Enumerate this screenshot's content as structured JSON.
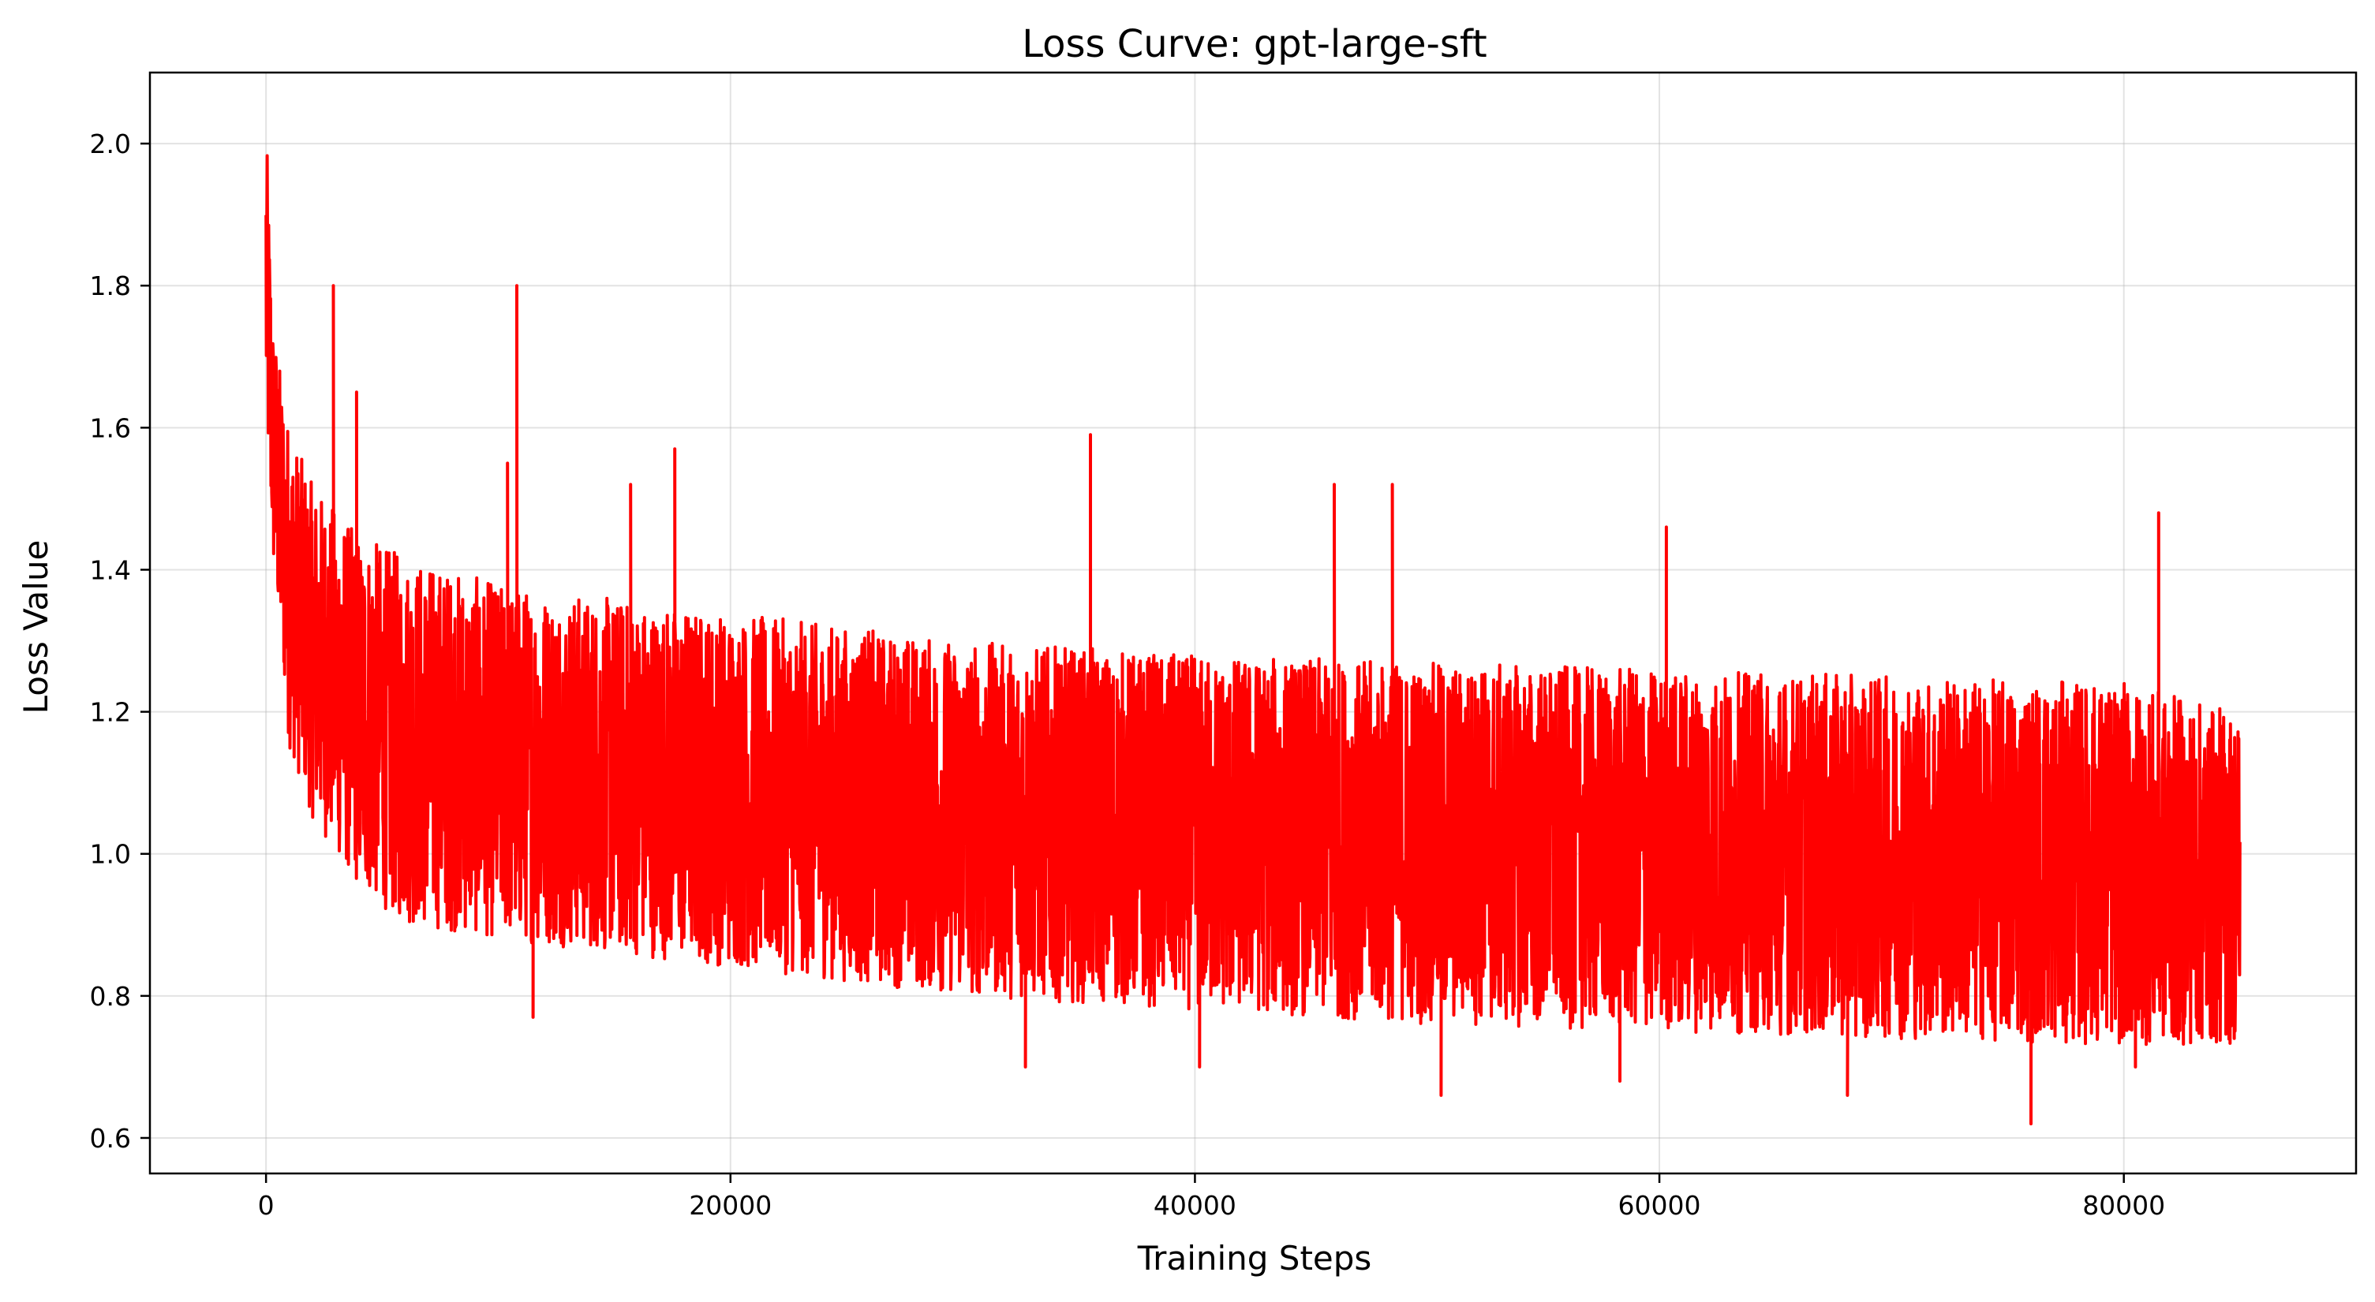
{
  "chart_data": {
    "type": "line",
    "title": "Loss Curve: gpt-large-sft",
    "xlabel": "Training Steps",
    "ylabel": "Loss Value",
    "xlim": [
      -5000,
      90000
    ],
    "ylim": [
      0.55,
      2.1
    ],
    "xticks": [
      0,
      20000,
      40000,
      60000,
      80000
    ],
    "xtick_labels": [
      "0",
      "20000",
      "40000",
      "60000",
      "80000"
    ],
    "yticks": [
      0.6,
      0.8,
      1.0,
      1.2,
      1.4,
      1.6,
      1.8,
      2.0
    ],
    "ytick_labels": [
      "0.6",
      "0.8",
      "1.0",
      "1.2",
      "1.4",
      "1.6",
      "1.8",
      "2.0"
    ],
    "grid": true,
    "series": [
      {
        "color": "#ff0000",
        "step_range": [
          0,
          85000
        ],
        "envelope": {
          "x": [
            0,
            300,
            1000,
            2000,
            4000,
            6000,
            10000,
            15000,
            20000,
            30000,
            40000,
            50000,
            60000,
            70000,
            80000,
            85000
          ],
          "min": [
            1.6,
            1.4,
            1.15,
            1.05,
            0.95,
            0.9,
            0.88,
            0.86,
            0.84,
            0.8,
            0.78,
            0.76,
            0.75,
            0.74,
            0.73,
            0.73
          ],
          "max": [
            2.03,
            1.75,
            1.6,
            1.52,
            1.45,
            1.42,
            1.38,
            1.36,
            1.34,
            1.3,
            1.28,
            1.27,
            1.26,
            1.25,
            1.24,
            1.2
          ]
        },
        "spikes": [
          {
            "x": 2900,
            "y": 1.8
          },
          {
            "x": 3900,
            "y": 1.65
          },
          {
            "x": 10800,
            "y": 1.8
          },
          {
            "x": 10400,
            "y": 1.55
          },
          {
            "x": 17600,
            "y": 1.57
          },
          {
            "x": 15700,
            "y": 1.52
          },
          {
            "x": 35500,
            "y": 1.59
          },
          {
            "x": 46000,
            "y": 1.52
          },
          {
            "x": 48500,
            "y": 1.52
          },
          {
            "x": 60300,
            "y": 1.46
          },
          {
            "x": 81500,
            "y": 1.48
          },
          {
            "x": 11500,
            "y": 0.77
          },
          {
            "x": 32700,
            "y": 0.7
          },
          {
            "x": 40200,
            "y": 0.7
          },
          {
            "x": 50600,
            "y": 0.66
          },
          {
            "x": 58300,
            "y": 0.68
          },
          {
            "x": 68100,
            "y": 0.66
          },
          {
            "x": 76000,
            "y": 0.62
          },
          {
            "x": 80500,
            "y": 0.7
          }
        ]
      }
    ]
  }
}
